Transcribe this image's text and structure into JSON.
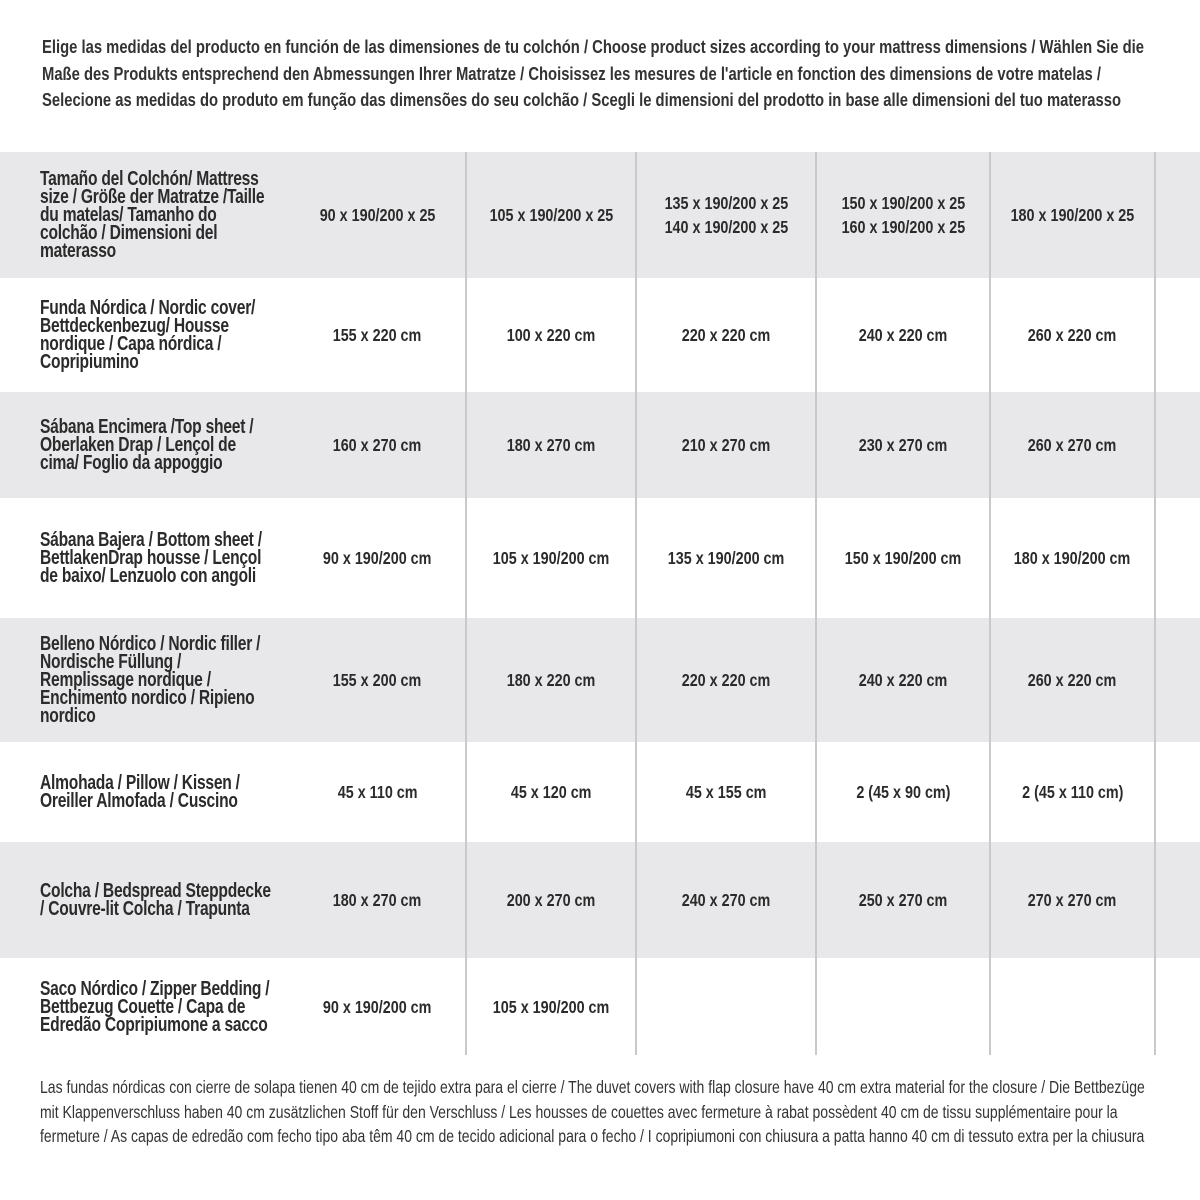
{
  "intro": "Elige las medidas del producto en función de las dimensiones de tu colchón / Choose product sizes according to your mattress dimensions / Wählen Sie die Maße des Produkts entsprechend den Abmessungen Ihrer Matratze / Choisissez les mesures de l'article en fonction des dimensions de votre matelas / Selecione as medidas do produto em função das dimensões do seu colchão / Scegli le dimensioni del prodotto in base alle dimensioni del tuo materasso",
  "table": {
    "rows": [
      {
        "label": "Tamaño del Colchón/ Mattress size / Größe der Matratze /Taille du matelas/ Tamanho do colchão / Dimensioni del materasso",
        "values": [
          "90 x 190/200 x 25",
          "105 x 190/200 x 25",
          "135 x 190/200 x 25\n140 x 190/200 x 25",
          "150 x 190/200 x 25\n160 x 190/200 x 25",
          "180 x 190/200 x 25"
        ]
      },
      {
        "label": "Funda Nórdica /  Nordic cover/ Bettdeckenbezug/ Housse nordique  / Capa nórdica / Copripiumino",
        "values": [
          "155 x 220 cm",
          "100 x 220 cm",
          "220 x 220 cm",
          "240 x 220 cm",
          "260 x 220 cm"
        ]
      },
      {
        "label": "Sábana Encimera /Top sheet / Oberlaken Drap / Lençol de cima/ Foglio da appoggio",
        "values": [
          "160 x 270 cm",
          "180 x 270 cm",
          "210 x 270 cm",
          "230 x 270 cm",
          "260 x 270 cm"
        ]
      },
      {
        "label": "Sábana Bajera / Bottom sheet / BettlakenDrap housse / Lençol de baixo/ Lenzuolo con angoli",
        "values": [
          "90 x 190/200 cm",
          "105 x 190/200 cm",
          "135 x 190/200 cm",
          "150 x 190/200 cm",
          "180 x 190/200 cm"
        ]
      },
      {
        "label": "Belleno Nórdico / Nordic filler / Nordische Füllung / Remplissage nordique / Enchimento nordico / Ripieno nordico",
        "values": [
          "155 x 200 cm",
          "180 x 220 cm",
          "220 x 220 cm",
          "240 x 220 cm",
          "260 x 220 cm"
        ]
      },
      {
        "label": "Almohada  / Pillow / Kissen / Oreiller Almofada / Cuscino",
        "values": [
          "45 x 110 cm",
          "45 x 120 cm",
          "45 x 155 cm",
          "2 (45 x 90 cm)",
          "2 (45 x 110 cm)"
        ]
      },
      {
        "label": "Colcha / Bedspread Steppdecke / Couvre-lit Colcha / Trapunta",
        "values": [
          "180 x 270 cm",
          "200 x 270 cm",
          "240 x 270 cm",
          "250 x 270 cm",
          "270 x 270 cm"
        ]
      },
      {
        "label": "Saco Nórdico / Zipper Bedding / Bettbezug Couette  / Capa de Edredão Copripiumone a sacco",
        "values": [
          "90 x 190/200 cm",
          "105 x 190/200 cm",
          "",
          "",
          ""
        ]
      }
    ]
  },
  "footer": "Las fundas nórdicas con cierre de solapa tienen 40 cm de tejido extra para el cierre  / The duvet covers with flap closure have 40 cm extra material for the closure / Die Bettbezüge mit Klappenverschluss haben 40 cm zusätzlichen Stoff für den Verschluss / Les housses de couettes avec fermeture à rabat possèdent 40 cm de tissu supplémentaire pour la fermeture / As capas de edredão com fecho tipo aba têm 40 cm de tecido adicional para o fecho / I copripiumoni con chiusura a patta hanno 40 cm di tessuto extra per la chiusura"
}
